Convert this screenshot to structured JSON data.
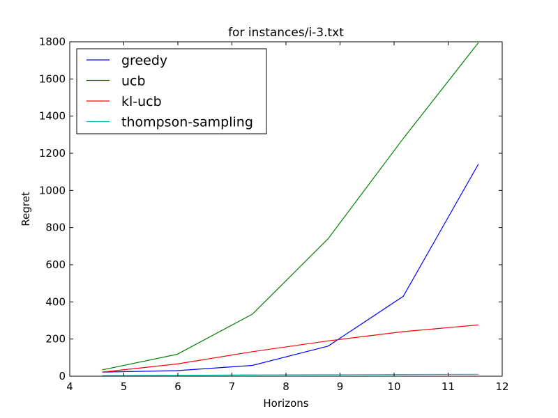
{
  "chart_data": {
    "type": "line",
    "title": "for instances/i-3.txt",
    "xlabel": "Horizons",
    "ylabel": "Regret",
    "xlim": [
      4,
      12
    ],
    "ylim": [
      0,
      1800
    ],
    "xticks": [
      4,
      5,
      6,
      7,
      8,
      9,
      10,
      11,
      12
    ],
    "yticks": [
      0,
      200,
      400,
      600,
      800,
      1000,
      1200,
      1400,
      1600,
      1800
    ],
    "grid": false,
    "legend_position": "top-left",
    "x": [
      4.6,
      5.99,
      7.38,
      8.78,
      10.17,
      11.56
    ],
    "series": [
      {
        "name": "greedy",
        "color": "#0000ff",
        "values": [
          22,
          30,
          58,
          162,
          430,
          1142
        ]
      },
      {
        "name": "ucb",
        "color": "#008000",
        "values": [
          34,
          118,
          334,
          740,
          1280,
          1795
        ]
      },
      {
        "name": "kl-ucb",
        "color": "#ff0000",
        "values": [
          22,
          66,
          132,
          190,
          240,
          276
        ]
      },
      {
        "name": "thompson-sampling",
        "color": "#00bfbf",
        "values": [
          3,
          5,
          7,
          8,
          9,
          10
        ]
      }
    ]
  }
}
